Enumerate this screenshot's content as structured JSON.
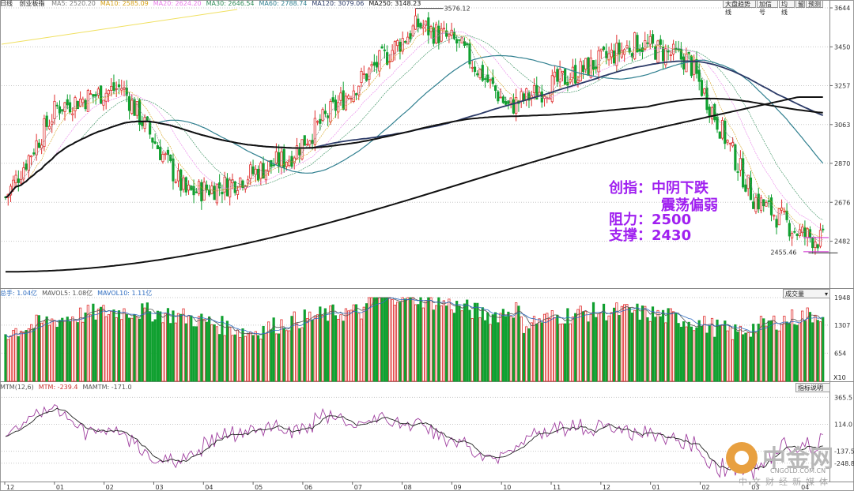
{
  "header": {
    "period": "日线",
    "symbol": "创业板指",
    "ma": [
      {
        "label": "MA5: 2520.20",
        "color": "#808080"
      },
      {
        "label": "MA10: 2585.09",
        "color": "#d4a017"
      },
      {
        "label": "MA20: 2624.20",
        "color": "#e87ce8"
      },
      {
        "label": "MA30: 2646.54",
        "color": "#2e8b57"
      },
      {
        "label": "MA60: 2788.74",
        "color": "#2f7f8f"
      },
      {
        "label": "MA120: 3079.06",
        "color": "#2b3a67"
      },
      {
        "label": "MA250: 3148.23",
        "color": "#111111"
      }
    ]
  },
  "toolbar": {
    "btn1": "大盘趋势线",
    "btn2": "加信号",
    "btn3": "均线",
    "btn4": "留",
    "btn5": "预测"
  },
  "annotation": {
    "line1": "创指：中阴下跌",
    "line2": "震荡偏弱",
    "line3": "阻力：2500",
    "line4": "支撑：2430"
  },
  "volume_panel": {
    "labels": [
      {
        "text": "总手: 1.04亿",
        "color": "#2e6cc0"
      },
      {
        "text": "MAVOL5: 1.08亿",
        "color": "#555555"
      },
      {
        "text": "MAVOL10: 1.11亿",
        "color": "#2e6cc0"
      }
    ],
    "selector": "成交量",
    "scale_note": "X10"
  },
  "mtm_panel": {
    "labels": [
      {
        "text": "MTM(12,6)",
        "color": "#555555"
      },
      {
        "text": "MTM: -239.4",
        "color": "#cc3333"
      },
      {
        "text": "MAMTM: -171.0",
        "color": "#555555"
      }
    ],
    "button": "指标说明"
  },
  "watermark": {
    "name": "中金网",
    "url": "CNGOLD.COM.CN",
    "tagline": "中文财经新媒体"
  },
  "colors": {
    "up": "#e03030",
    "down": "#10a030",
    "grid": "#c8c8c8"
  },
  "chart_data": {
    "type": "candlestick",
    "price_axis": {
      "ticks": [
        3644,
        3450,
        3257,
        3063,
        2870,
        2676,
        2482
      ],
      "ylim": [
        2280,
        3644
      ]
    },
    "price_annotations": {
      "high": "3576.12",
      "low": "2455.46"
    },
    "month_labels": [
      "12",
      "01",
      "02",
      "03",
      "04",
      "05",
      "06",
      "07",
      "08",
      "09",
      "10",
      "11",
      "12",
      "01",
      "02",
      "03",
      "04"
    ],
    "volume_axis": {
      "ticks": [
        1948,
        1307,
        654
      ],
      "ylim": [
        0,
        1948
      ]
    },
    "mtm_axis": {
      "ticks": [
        "365.5",
        "114.0",
        "-137.5",
        "-248.8"
      ],
      "ylim": [
        -420,
        420
      ]
    }
  }
}
